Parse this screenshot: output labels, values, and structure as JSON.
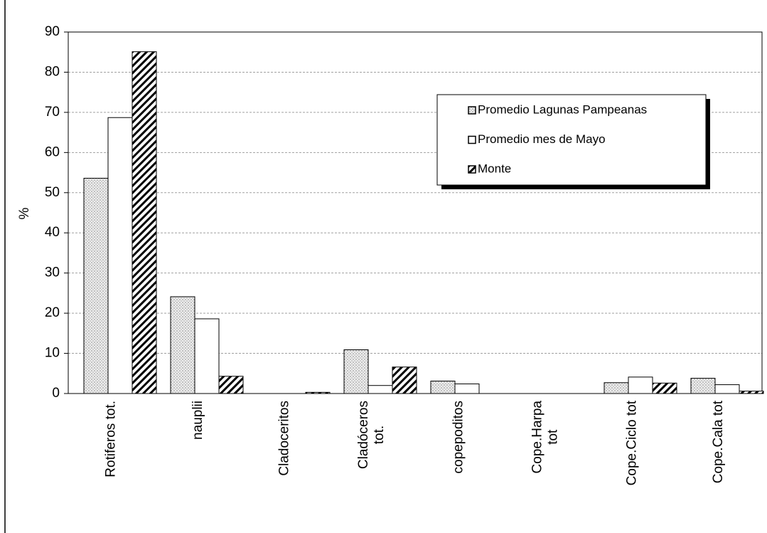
{
  "chart_data": {
    "type": "bar",
    "y_label": "%",
    "categories": [
      "Rotiferos tot.",
      "nauplii",
      "Cladoceritos",
      "Cladóceros\ntot.",
      "copepoditos",
      "Cope.Harpa\ntot",
      "Cope.Ciclo tot",
      "Cope.Cala tot"
    ],
    "series": [
      {
        "name": "Promedio Lagunas Pampeanas",
        "color": "#c8c8c8",
        "pattern": "dots",
        "values": [
          53.6,
          24.1,
          0,
          10.9,
          3.1,
          0,
          2.7,
          3.8
        ]
      },
      {
        "name": "Promedio mes de Mayo",
        "color": "#ffffff",
        "pattern": "none",
        "values": [
          68.7,
          18.6,
          0,
          2.0,
          2.4,
          0,
          4.1,
          2.2
        ]
      },
      {
        "name": "Monte",
        "color": "#000000",
        "pattern": "hatch",
        "values": [
          85.1,
          4.3,
          0.3,
          6.6,
          0,
          0,
          2.6,
          0.6
        ]
      }
    ],
    "ylim": [
      0,
      90
    ],
    "yticks": [
      0,
      10,
      20,
      30,
      40,
      50,
      60,
      70,
      80,
      90
    ],
    "grid": true
  }
}
